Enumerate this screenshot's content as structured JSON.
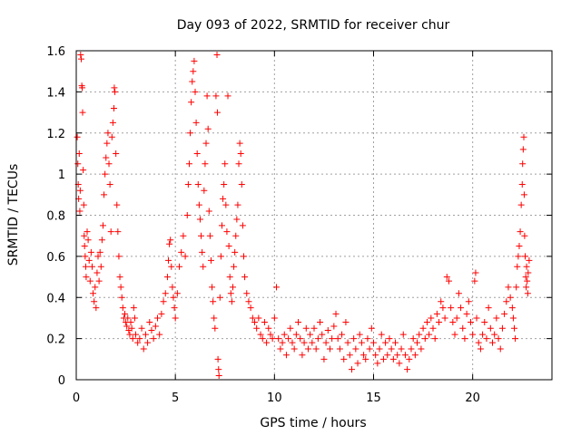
{
  "chart_data": {
    "type": "scatter",
    "title": "Day 093 of 2022, SRMTID for receiver chur",
    "xlabel": "GPS time / hours",
    "ylabel": "SRMTID / TECUs",
    "xlim": [
      0,
      24
    ],
    "ylim": [
      0,
      1.6
    ],
    "xticks": [
      0,
      5,
      10,
      15,
      20
    ],
    "xtick_labels": [
      "0",
      "5",
      "10",
      "15",
      "20"
    ],
    "yticks": [
      0,
      0.2,
      0.4,
      0.6,
      0.8,
      1.0,
      1.2,
      1.4,
      1.6
    ],
    "ytick_labels": [
      "0",
      "0.2",
      "0.4",
      "0.6",
      "0.8",
      "1",
      "1.2",
      "1.4",
      "1.6"
    ],
    "grid": true,
    "marker": "plus",
    "color": "#ff0000",
    "series": [
      {
        "name": "SRMTID",
        "points": [
          [
            0.05,
            1.18
          ],
          [
            0.08,
            1.05
          ],
          [
            0.1,
            0.95
          ],
          [
            0.12,
            0.88
          ],
          [
            0.15,
            1.1
          ],
          [
            0.18,
            0.82
          ],
          [
            0.2,
            0.92
          ],
          [
            0.22,
            1.58
          ],
          [
            0.25,
            1.56
          ],
          [
            0.28,
            1.43
          ],
          [
            0.3,
            1.42
          ],
          [
            0.32,
            1.3
          ],
          [
            0.35,
            1.02
          ],
          [
            0.38,
            0.85
          ],
          [
            0.4,
            0.7
          ],
          [
            0.42,
            0.65
          ],
          [
            0.45,
            0.6
          ],
          [
            0.48,
            0.55
          ],
          [
            0.5,
            0.5
          ],
          [
            0.55,
            0.72
          ],
          [
            0.6,
            0.68
          ],
          [
            0.65,
            0.58
          ],
          [
            0.7,
            0.48
          ],
          [
            0.75,
            0.62
          ],
          [
            0.8,
            0.55
          ],
          [
            0.85,
            0.42
          ],
          [
            0.9,
            0.38
          ],
          [
            0.95,
            0.45
          ],
          [
            1.0,
            0.35
          ],
          [
            1.05,
            0.52
          ],
          [
            1.1,
            0.6
          ],
          [
            1.15,
            0.48
          ],
          [
            1.2,
            0.62
          ],
          [
            1.25,
            0.55
          ],
          [
            1.3,
            0.68
          ],
          [
            1.35,
            0.75
          ],
          [
            1.4,
            0.9
          ],
          [
            1.45,
            1.0
          ],
          [
            1.5,
            1.08
          ],
          [
            1.55,
            1.15
          ],
          [
            1.6,
            1.2
          ],
          [
            1.65,
            1.05
          ],
          [
            1.7,
            0.95
          ],
          [
            1.75,
            0.72
          ],
          [
            1.8,
            1.18
          ],
          [
            1.85,
            1.25
          ],
          [
            1.9,
            1.32
          ],
          [
            1.92,
            1.42
          ],
          [
            1.95,
            1.4
          ],
          [
            2.0,
            1.1
          ],
          [
            2.05,
            0.85
          ],
          [
            2.1,
            0.72
          ],
          [
            2.15,
            0.6
          ],
          [
            2.2,
            0.5
          ],
          [
            2.25,
            0.45
          ],
          [
            2.3,
            0.4
          ],
          [
            2.35,
            0.35
          ],
          [
            2.4,
            0.3
          ],
          [
            2.45,
            0.32
          ],
          [
            2.5,
            0.28
          ],
          [
            2.55,
            0.26
          ],
          [
            2.6,
            0.3
          ],
          [
            2.65,
            0.24
          ],
          [
            2.7,
            0.22
          ],
          [
            2.75,
            0.28
          ],
          [
            2.8,
            0.25
          ],
          [
            2.85,
            0.2
          ],
          [
            2.9,
            0.35
          ],
          [
            2.95,
            0.3
          ],
          [
            3.0,
            0.22
          ],
          [
            3.1,
            0.18
          ],
          [
            3.2,
            0.2
          ],
          [
            3.3,
            0.25
          ],
          [
            3.4,
            0.15
          ],
          [
            3.5,
            0.22
          ],
          [
            3.6,
            0.18
          ],
          [
            3.7,
            0.28
          ],
          [
            3.8,
            0.24
          ],
          [
            3.9,
            0.2
          ],
          [
            4.0,
            0.26
          ],
          [
            4.1,
            0.3
          ],
          [
            4.2,
            0.22
          ],
          [
            4.3,
            0.32
          ],
          [
            4.4,
            0.38
          ],
          [
            4.5,
            0.42
          ],
          [
            4.6,
            0.5
          ],
          [
            4.65,
            0.58
          ],
          [
            4.7,
            0.66
          ],
          [
            4.75,
            0.68
          ],
          [
            4.8,
            0.55
          ],
          [
            4.85,
            0.45
          ],
          [
            4.9,
            0.4
          ],
          [
            4.95,
            0.35
          ],
          [
            5.0,
            0.3
          ],
          [
            5.1,
            0.42
          ],
          [
            5.2,
            0.55
          ],
          [
            5.3,
            0.62
          ],
          [
            5.4,
            0.7
          ],
          [
            5.5,
            0.6
          ],
          [
            5.6,
            0.8
          ],
          [
            5.65,
            0.95
          ],
          [
            5.7,
            1.05
          ],
          [
            5.75,
            1.2
          ],
          [
            5.8,
            1.35
          ],
          [
            5.85,
            1.45
          ],
          [
            5.9,
            1.5
          ],
          [
            5.95,
            1.55
          ],
          [
            6.0,
            1.4
          ],
          [
            6.05,
            1.25
          ],
          [
            6.1,
            1.1
          ],
          [
            6.15,
            0.95
          ],
          [
            6.2,
            0.85
          ],
          [
            6.25,
            0.78
          ],
          [
            6.3,
            0.7
          ],
          [
            6.35,
            0.62
          ],
          [
            6.4,
            0.55
          ],
          [
            6.45,
            0.92
          ],
          [
            6.5,
            1.05
          ],
          [
            6.55,
            1.15
          ],
          [
            6.6,
            1.38
          ],
          [
            6.65,
            1.22
          ],
          [
            6.7,
            0.82
          ],
          [
            6.75,
            0.7
          ],
          [
            6.8,
            0.58
          ],
          [
            6.85,
            0.45
          ],
          [
            6.9,
            0.38
          ],
          [
            6.95,
            0.3
          ],
          [
            7.0,
            0.25
          ],
          [
            7.05,
            1.38
          ],
          [
            7.1,
            1.58
          ],
          [
            7.12,
            1.3
          ],
          [
            7.15,
            0.1
          ],
          [
            7.18,
            0.05
          ],
          [
            7.2,
            0.02
          ],
          [
            7.25,
            0.4
          ],
          [
            7.3,
            0.6
          ],
          [
            7.35,
            0.75
          ],
          [
            7.4,
            0.88
          ],
          [
            7.45,
            0.95
          ],
          [
            7.5,
            1.05
          ],
          [
            7.55,
            0.85
          ],
          [
            7.6,
            0.72
          ],
          [
            7.65,
            1.38
          ],
          [
            7.7,
            0.65
          ],
          [
            7.75,
            0.5
          ],
          [
            7.8,
            0.42
          ],
          [
            7.85,
            0.38
          ],
          [
            7.9,
            0.45
          ],
          [
            7.95,
            0.55
          ],
          [
            8.0,
            0.62
          ],
          [
            8.05,
            0.7
          ],
          [
            8.1,
            0.78
          ],
          [
            8.15,
            0.85
          ],
          [
            8.2,
            1.05
          ],
          [
            8.25,
            1.15
          ],
          [
            8.3,
            1.1
          ],
          [
            8.35,
            0.95
          ],
          [
            8.4,
            0.75
          ],
          [
            8.45,
            0.6
          ],
          [
            8.5,
            0.5
          ],
          [
            8.6,
            0.42
          ],
          [
            8.7,
            0.38
          ],
          [
            8.8,
            0.35
          ],
          [
            8.9,
            0.3
          ],
          [
            9.0,
            0.28
          ],
          [
            9.1,
            0.25
          ],
          [
            9.2,
            0.3
          ],
          [
            9.3,
            0.22
          ],
          [
            9.4,
            0.2
          ],
          [
            9.5,
            0.28
          ],
          [
            9.6,
            0.18
          ],
          [
            9.7,
            0.25
          ],
          [
            9.8,
            0.22
          ],
          [
            9.9,
            0.2
          ],
          [
            10.0,
            0.3
          ],
          [
            10.1,
            0.45
          ],
          [
            10.2,
            0.2
          ],
          [
            10.3,
            0.15
          ],
          [
            10.4,
            0.18
          ],
          [
            10.5,
            0.22
          ],
          [
            10.6,
            0.12
          ],
          [
            10.7,
            0.2
          ],
          [
            10.8,
            0.25
          ],
          [
            10.9,
            0.18
          ],
          [
            11.0,
            0.15
          ],
          [
            11.1,
            0.22
          ],
          [
            11.2,
            0.28
          ],
          [
            11.3,
            0.2
          ],
          [
            11.4,
            0.12
          ],
          [
            11.5,
            0.18
          ],
          [
            11.6,
            0.25
          ],
          [
            11.7,
            0.15
          ],
          [
            11.8,
            0.22
          ],
          [
            11.9,
            0.18
          ],
          [
            12.0,
            0.25
          ],
          [
            12.1,
            0.15
          ],
          [
            12.2,
            0.2
          ],
          [
            12.3,
            0.28
          ],
          [
            12.4,
            0.22
          ],
          [
            12.5,
            0.1
          ],
          [
            12.6,
            0.18
          ],
          [
            12.7,
            0.24
          ],
          [
            12.8,
            0.15
          ],
          [
            12.9,
            0.2
          ],
          [
            13.0,
            0.26
          ],
          [
            13.1,
            0.32
          ],
          [
            13.2,
            0.2
          ],
          [
            13.3,
            0.15
          ],
          [
            13.4,
            0.22
          ],
          [
            13.5,
            0.1
          ],
          [
            13.6,
            0.28
          ],
          [
            13.7,
            0.18
          ],
          [
            13.8,
            0.12
          ],
          [
            13.9,
            0.05
          ],
          [
            14.0,
            0.2
          ],
          [
            14.1,
            0.15
          ],
          [
            14.2,
            0.08
          ],
          [
            14.3,
            0.22
          ],
          [
            14.4,
            0.18
          ],
          [
            14.5,
            0.12
          ],
          [
            14.6,
            0.1
          ],
          [
            14.7,
            0.2
          ],
          [
            14.8,
            0.15
          ],
          [
            14.9,
            0.25
          ],
          [
            15.0,
            0.18
          ],
          [
            15.1,
            0.12
          ],
          [
            15.2,
            0.08
          ],
          [
            15.3,
            0.15
          ],
          [
            15.4,
            0.22
          ],
          [
            15.5,
            0.1
          ],
          [
            15.6,
            0.18
          ],
          [
            15.7,
            0.12
          ],
          [
            15.8,
            0.2
          ],
          [
            15.9,
            0.15
          ],
          [
            16.0,
            0.1
          ],
          [
            16.1,
            0.18
          ],
          [
            16.2,
            0.12
          ],
          [
            16.3,
            0.08
          ],
          [
            16.4,
            0.15
          ],
          [
            16.5,
            0.22
          ],
          [
            16.6,
            0.12
          ],
          [
            16.7,
            0.05
          ],
          [
            16.8,
            0.1
          ],
          [
            16.9,
            0.15
          ],
          [
            17.0,
            0.2
          ],
          [
            17.1,
            0.12
          ],
          [
            17.2,
            0.18
          ],
          [
            17.3,
            0.22
          ],
          [
            17.4,
            0.15
          ],
          [
            17.5,
            0.25
          ],
          [
            17.6,
            0.2
          ],
          [
            17.7,
            0.28
          ],
          [
            17.8,
            0.22
          ],
          [
            17.9,
            0.3
          ],
          [
            18.0,
            0.25
          ],
          [
            18.1,
            0.2
          ],
          [
            18.2,
            0.32
          ],
          [
            18.3,
            0.28
          ],
          [
            18.4,
            0.38
          ],
          [
            18.5,
            0.35
          ],
          [
            18.6,
            0.3
          ],
          [
            18.7,
            0.5
          ],
          [
            18.8,
            0.48
          ],
          [
            18.9,
            0.35
          ],
          [
            19.0,
            0.28
          ],
          [
            19.1,
            0.22
          ],
          [
            19.2,
            0.3
          ],
          [
            19.3,
            0.42
          ],
          [
            19.4,
            0.35
          ],
          [
            19.5,
            0.25
          ],
          [
            19.6,
            0.2
          ],
          [
            19.7,
            0.32
          ],
          [
            19.8,
            0.38
          ],
          [
            19.9,
            0.28
          ],
          [
            20.0,
            0.22
          ],
          [
            20.1,
            0.48
          ],
          [
            20.15,
            0.52
          ],
          [
            20.2,
            0.3
          ],
          [
            20.3,
            0.18
          ],
          [
            20.4,
            0.15
          ],
          [
            20.5,
            0.22
          ],
          [
            20.6,
            0.28
          ],
          [
            20.7,
            0.2
          ],
          [
            20.8,
            0.35
          ],
          [
            20.9,
            0.25
          ],
          [
            21.0,
            0.18
          ],
          [
            21.1,
            0.22
          ],
          [
            21.2,
            0.3
          ],
          [
            21.3,
            0.2
          ],
          [
            21.4,
            0.15
          ],
          [
            21.5,
            0.25
          ],
          [
            21.6,
            0.32
          ],
          [
            21.7,
            0.38
          ],
          [
            21.8,
            0.45
          ],
          [
            21.9,
            0.4
          ],
          [
            22.0,
            0.35
          ],
          [
            22.05,
            0.3
          ],
          [
            22.1,
            0.25
          ],
          [
            22.15,
            0.2
          ],
          [
            22.2,
            0.45
          ],
          [
            22.25,
            0.55
          ],
          [
            22.3,
            0.6
          ],
          [
            22.35,
            0.65
          ],
          [
            22.4,
            0.72
          ],
          [
            22.45,
            0.85
          ],
          [
            22.5,
            0.95
          ],
          [
            22.52,
            1.05
          ],
          [
            22.55,
            1.12
          ],
          [
            22.58,
            1.18
          ],
          [
            22.6,
            0.9
          ],
          [
            22.62,
            0.7
          ],
          [
            22.65,
            0.6
          ],
          [
            22.68,
            0.5
          ],
          [
            22.7,
            0.45
          ],
          [
            22.72,
            0.55
          ],
          [
            22.75,
            0.48
          ],
          [
            22.78,
            0.42
          ],
          [
            22.8,
            0.52
          ],
          [
            22.85,
            0.58
          ]
        ]
      }
    ]
  }
}
